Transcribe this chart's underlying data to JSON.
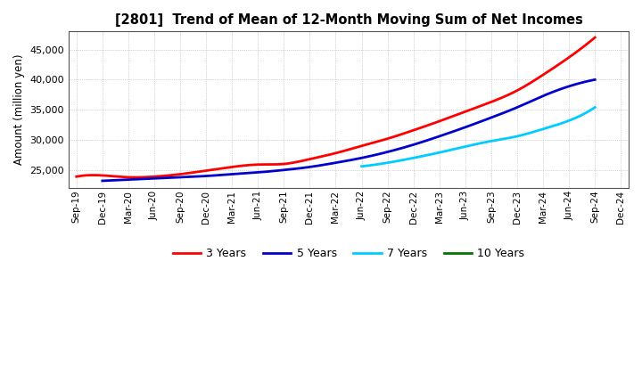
{
  "title": "[2801]  Trend of Mean of 12-Month Moving Sum of Net Incomes",
  "ylabel": "Amount (million yen)",
  "background_color": "#ffffff",
  "grid_color": "#999999",
  "ylim": [
    22000,
    48000
  ],
  "yticks": [
    25000,
    30000,
    35000,
    40000,
    45000
  ],
  "x_labels": [
    "Sep-19",
    "Dec-19",
    "Mar-20",
    "Jun-20",
    "Sep-20",
    "Dec-20",
    "Mar-21",
    "Jun-21",
    "Sep-21",
    "Dec-21",
    "Mar-22",
    "Jun-22",
    "Sep-22",
    "Dec-22",
    "Mar-23",
    "Jun-23",
    "Sep-23",
    "Dec-23",
    "Mar-24",
    "Jun-24",
    "Sep-24",
    "Dec-24"
  ],
  "series": {
    "3 Years": {
      "color": "#ff0000",
      "values": [
        23900,
        24100,
        23800,
        23900,
        24300,
        24900,
        25500,
        25900,
        26000,
        26800,
        27800,
        29000,
        30200,
        31600,
        33100,
        34700,
        36300,
        38200,
        40800,
        43700,
        47000,
        null
      ]
    },
    "5 Years": {
      "color": "#0000cc",
      "values": [
        null,
        23200,
        23400,
        23600,
        23800,
        24000,
        24300,
        24600,
        25000,
        25500,
        26200,
        27000,
        28000,
        29200,
        30600,
        32100,
        33700,
        35400,
        37300,
        38900,
        40000,
        null
      ]
    },
    "7 Years": {
      "color": "#00ccff",
      "values": [
        null,
        null,
        null,
        null,
        null,
        null,
        null,
        null,
        null,
        null,
        null,
        25600,
        26200,
        27000,
        27900,
        28900,
        29800,
        30600,
        31800,
        33200,
        35400,
        null
      ]
    },
    "10 Years": {
      "color": "#007700",
      "values": [
        null,
        null,
        null,
        null,
        null,
        null,
        null,
        null,
        null,
        null,
        null,
        null,
        null,
        null,
        null,
        null,
        null,
        null,
        null,
        null,
        null,
        null
      ]
    }
  },
  "legend_labels": [
    "3 Years",
    "5 Years",
    "7 Years",
    "10 Years"
  ],
  "legend_colors": [
    "#ff0000",
    "#0000cc",
    "#00ccff",
    "#007700"
  ]
}
